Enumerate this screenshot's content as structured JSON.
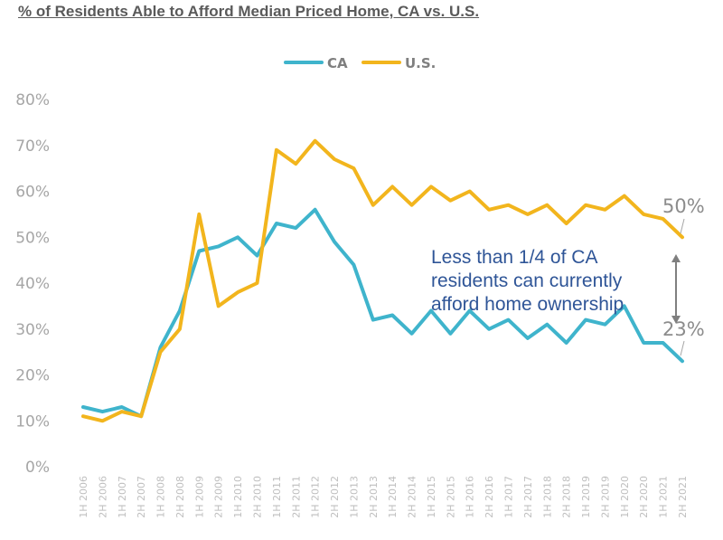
{
  "chart_data": {
    "type": "line",
    "title": "% of Residents Able to Afford Median Priced Home, CA vs. U.S.",
    "categories": [
      "1H 2006",
      "2H 2006",
      "1H 2007",
      "2H 2007",
      "1H 2008",
      "2H 2008",
      "1H 2009",
      "2H 2009",
      "1H 2010",
      "2H 2010",
      "1H 2011",
      "2H 2011",
      "1H 2012",
      "2H 2012",
      "1H 2013",
      "2H 2013",
      "1H 2014",
      "2H 2014",
      "1H 2015",
      "2H 2015",
      "1H 2016",
      "2H 2016",
      "1H 2017",
      "2H 2017",
      "1H 2018",
      "2H 2018",
      "1H 2019",
      "2H 2019",
      "1H 2020",
      "2H 2020",
      "1H 2021",
      "2H 2021"
    ],
    "series": [
      {
        "name": "CA",
        "color": "#3fb4cc",
        "values": [
          13,
          12,
          13,
          11,
          26,
          34,
          47,
          48,
          50,
          46,
          53,
          52,
          56,
          49,
          44,
          32,
          33,
          29,
          34,
          29,
          34,
          30,
          32,
          28,
          31,
          27,
          32,
          31,
          35,
          27,
          27,
          23
        ]
      },
      {
        "name": "U.S.",
        "color": "#f2b51d",
        "values": [
          11,
          10,
          12,
          11,
          25,
          30,
          55,
          35,
          38,
          40,
          69,
          66,
          71,
          67,
          65,
          57,
          61,
          57,
          61,
          58,
          60,
          56,
          57,
          55,
          57,
          53,
          57,
          56,
          59,
          55,
          54,
          50
        ]
      }
    ],
    "ylim": [
      0,
      80
    ],
    "yticks": [
      "0%",
      "10%",
      "20%",
      "30%",
      "40%",
      "50%",
      "60%",
      "70%",
      "80%"
    ],
    "legend_position": "top-center",
    "grid": false,
    "annotation": {
      "lines": [
        "Less than 1/4 of CA",
        "residents can currently",
        "afford home ownership"
      ],
      "us_end_label": "50%",
      "ca_end_label": "23%"
    }
  }
}
